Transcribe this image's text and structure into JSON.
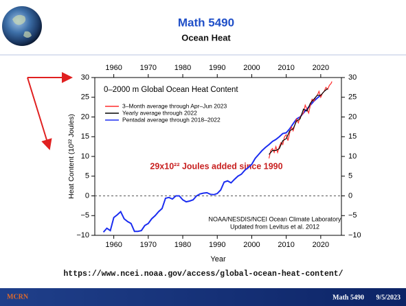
{
  "header": {
    "title": "Math 5490",
    "subtitle": "Ocean Heat"
  },
  "chart_data": {
    "type": "line",
    "title": "0–2000 m Global Ocean Heat Content",
    "x_label": "Year",
    "y_label": "Heat Content (10²² Joules)",
    "annotation": "29x10²² Joules added since 1990",
    "note": [
      "NOAA/NESDIS/NCEI Ocean Climate Laboratory",
      "Updated from Levitus et al. 2012"
    ],
    "xlim": [
      1954.5,
      2026
    ],
    "xticks": [
      1960,
      1970,
      1980,
      1990,
      2000,
      2010,
      2020
    ],
    "ylim": [
      -10,
      30
    ],
    "yticks": [
      {
        "value": -10,
        "label": "−10"
      },
      {
        "value": -5,
        "label": "−5"
      },
      0,
      5,
      10,
      15,
      20,
      25,
      30
    ],
    "hline": {
      "value": 0,
      "style": "dashed"
    },
    "series": [
      {
        "name": "3–Month average through Apr–Jun 2023",
        "color": "#ff2a2a",
        "x": [
          2005,
          2005.5,
          2006,
          2006.5,
          2007,
          2007.5,
          2008,
          2008.5,
          2009,
          2009.5,
          2010,
          2010.5,
          2011,
          2011.5,
          2012,
          2012.5,
          2013,
          2013.5,
          2014,
          2014.5,
          2015,
          2015.5,
          2016,
          2016.5,
          2017,
          2017.5,
          2018,
          2018.5,
          2019,
          2019.5,
          2020,
          2020.5,
          2021,
          2021.5,
          2022,
          2022.5,
          2023,
          2023.25
        ],
        "values": [
          9.5,
          11.5,
          12,
          11,
          12.5,
          11,
          12.5,
          13.5,
          13,
          15,
          15.5,
          14,
          16,
          17.5,
          16.5,
          18,
          19.5,
          18.5,
          20,
          20.5,
          21,
          23,
          22,
          21,
          23,
          24.5,
          24,
          25,
          25.5,
          26.5,
          25,
          26,
          26.5,
          27.5,
          27,
          28,
          28.5,
          29
        ]
      },
      {
        "name": "Yearly average through 2022",
        "color": "#000000",
        "x": [
          2005,
          2006,
          2007,
          2008,
          2009,
          2010,
          2011,
          2012,
          2013,
          2014,
          2015,
          2016,
          2017,
          2018,
          2019,
          2020,
          2021,
          2022
        ],
        "values": [
          10.5,
          11.5,
          11.5,
          12,
          14,
          14.5,
          16.5,
          17,
          19,
          19.5,
          22,
          21.5,
          23.5,
          24.5,
          25.5,
          25.5,
          26.5,
          27.2
        ]
      },
      {
        "name": "Pentadal average through 2018–2022",
        "color": "#1a2cf0",
        "x": [
          1957,
          1958,
          1959,
          1960,
          1961,
          1962,
          1963,
          1964,
          1965,
          1966,
          1967,
          1968,
          1969,
          1970,
          1971,
          1972,
          1973,
          1974,
          1975,
          1976,
          1977,
          1978,
          1979,
          1980,
          1981,
          1982,
          1983,
          1984,
          1985,
          1986,
          1987,
          1988,
          1989,
          1990,
          1991,
          1992,
          1993,
          1994,
          1995,
          1996,
          1997,
          1998,
          1999,
          2000,
          2001,
          2002,
          2003,
          2004,
          2005,
          2006,
          2007,
          2008,
          2009,
          2010,
          2011,
          2012,
          2013,
          2014,
          2015,
          2016,
          2017,
          2018,
          2019,
          2020
        ],
        "values": [
          -9.2,
          -8.2,
          -8.8,
          -5.5,
          -4.8,
          -4.0,
          -5.8,
          -6.5,
          -7.0,
          -9.0,
          -9.0,
          -8.8,
          -7.5,
          -7.0,
          -5.8,
          -5.0,
          -4.0,
          -3.2,
          -0.6,
          -0.4,
          -0.8,
          0.0,
          0.0,
          -1.0,
          -1.5,
          -1.3,
          -1.0,
          0.0,
          0.5,
          0.7,
          0.8,
          0.4,
          0.3,
          0.6,
          1.5,
          3.5,
          3.8,
          3.3,
          4.2,
          5.0,
          5.5,
          6.5,
          7.2,
          8.0,
          9.5,
          10.5,
          11.5,
          12.3,
          13.0,
          13.8,
          14.3,
          15.0,
          15.8,
          16.0,
          17.0,
          18.3,
          19.5,
          20.0,
          21.0,
          22.0,
          23.0,
          24.0,
          24.8,
          25.5
        ]
      }
    ]
  },
  "url": "https://www.ncei.noaa.gov/access/global-ocean-heat-content/",
  "footer": {
    "logo": "MCRN",
    "course": "Math 5490",
    "date": "9/5/2023"
  }
}
